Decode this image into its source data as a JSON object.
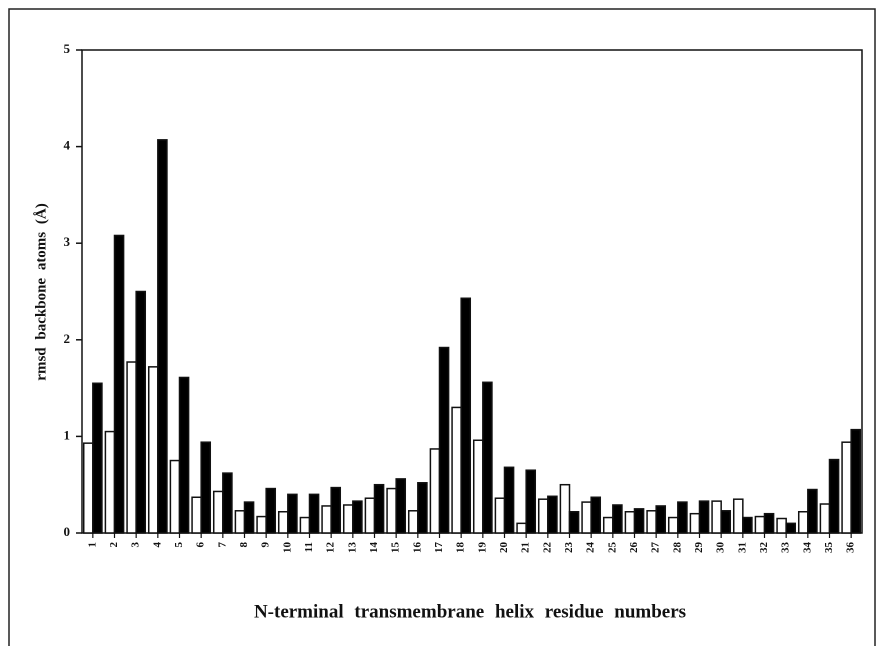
{
  "chart_data": {
    "type": "bar",
    "xlabel": "N-terminal transmembrane helix residue numbers",
    "ylabel": "rmsd backbone atoms (Å)",
    "categories": [
      "1",
      "2",
      "3",
      "4",
      "5",
      "6",
      "7",
      "8",
      "9",
      "10",
      "11",
      "12",
      "13",
      "14",
      "15",
      "16",
      "17",
      "18",
      "19",
      "20",
      "21",
      "22",
      "23",
      "24",
      "25",
      "26",
      "27",
      "28",
      "29",
      "30",
      "31",
      "32",
      "33",
      "34",
      "35",
      "36"
    ],
    "series": [
      {
        "color": "#ffffff",
        "values": [
          0.93,
          1.05,
          1.77,
          1.72,
          0.75,
          0.37,
          0.43,
          0.23,
          0.17,
          0.22,
          0.16,
          0.28,
          0.29,
          0.36,
          0.46,
          0.23,
          0.87,
          1.3,
          0.96,
          0.36,
          0.1,
          0.35,
          0.5,
          0.32,
          0.16,
          0.22,
          0.23,
          0.16,
          0.2,
          0.33,
          0.35,
          0.17,
          0.15,
          0.22,
          0.3,
          0.94
        ]
      },
      {
        "color": "#000000",
        "values": [
          1.55,
          3.08,
          2.5,
          4.07,
          1.61,
          0.94,
          0.62,
          0.32,
          0.46,
          0.4,
          0.4,
          0.47,
          0.33,
          0.5,
          0.56,
          0.52,
          1.92,
          2.43,
          1.56,
          0.68,
          0.65,
          0.38,
          0.22,
          0.37,
          0.29,
          0.25,
          0.28,
          0.32,
          0.33,
          0.23,
          0.16,
          0.2,
          0.1,
          0.45,
          0.76,
          1.07
        ]
      }
    ],
    "ylim": [
      0,
      5
    ],
    "yticks": [
      0,
      1,
      2,
      3,
      4,
      5
    ],
    "grid": false
  }
}
